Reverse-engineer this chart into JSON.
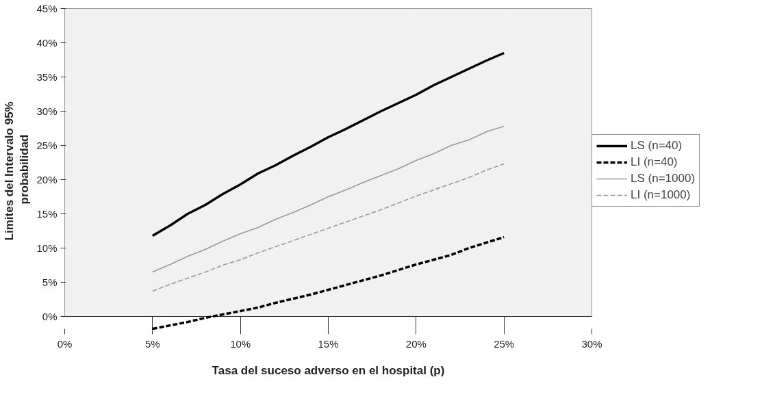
{
  "chart_data": {
    "type": "line",
    "xlabel": "Tasa del suceso adverso en el hospital (p)",
    "ylabel": "Limites del Intervalo  95%\nprobabilidad",
    "x": [
      5,
      6,
      7,
      8,
      9,
      10,
      11,
      12,
      13,
      14,
      15,
      16,
      17,
      18,
      19,
      20,
      21,
      22,
      23,
      24,
      25
    ],
    "series": [
      {
        "name": "LS (n=40)",
        "color": "#000000",
        "line_style": "solid",
        "values": [
          11.8,
          13.3,
          15.0,
          16.3,
          17.9,
          19.3,
          20.9,
          22.1,
          23.5,
          24.8,
          26.2,
          27.4,
          28.7,
          30.0,
          31.2,
          32.4,
          33.8,
          35.0,
          36.2,
          37.4,
          38.5
        ]
      },
      {
        "name": "LI (n=40)",
        "color": "#000000",
        "line_style": "dashed",
        "values": [
          -1.8,
          -1.3,
          -0.8,
          -0.2,
          0.3,
          0.8,
          1.3,
          2.0,
          2.6,
          3.2,
          3.9,
          4.6,
          5.3,
          6.0,
          6.8,
          7.6,
          8.3,
          9.0,
          10.0,
          10.8,
          11.6
        ]
      },
      {
        "name": "LS (n=1000)",
        "color": "#999999",
        "line_style": "solid",
        "values": [
          6.5,
          7.6,
          8.8,
          9.8,
          11.0,
          12.1,
          13.0,
          14.2,
          15.2,
          16.3,
          17.5,
          18.5,
          19.6,
          20.6,
          21.6,
          22.8,
          23.8,
          25.0,
          25.8,
          27.0,
          27.8
        ]
      },
      {
        "name": "LI (n=1000)",
        "color": "#999999",
        "line_style": "dashed",
        "values": [
          3.7,
          4.7,
          5.6,
          6.5,
          7.5,
          8.3,
          9.3,
          10.2,
          11.1,
          12.0,
          12.9,
          13.8,
          14.7,
          15.6,
          16.6,
          17.6,
          18.5,
          19.4,
          20.3,
          21.4,
          22.3
        ]
      }
    ],
    "xlim": [
      0,
      30
    ],
    "xticks": [
      {
        "value": 0,
        "label": "0%"
      },
      {
        "value": 5,
        "label": "5%"
      },
      {
        "value": 10,
        "label": "10%"
      },
      {
        "value": 15,
        "label": "15%"
      },
      {
        "value": 20,
        "label": "20%"
      },
      {
        "value": 25,
        "label": "25%"
      },
      {
        "value": 30,
        "label": "30%"
      }
    ],
    "ylim": [
      -2,
      45
    ],
    "yticks": [
      {
        "value": 0,
        "label": "0%"
      },
      {
        "value": 5,
        "label": "5%"
      },
      {
        "value": 10,
        "label": "10%"
      },
      {
        "value": 15,
        "label": "15%"
      },
      {
        "value": 20,
        "label": "20%"
      },
      {
        "value": 25,
        "label": "25%"
      },
      {
        "value": 30,
        "label": "30%"
      },
      {
        "value": 35,
        "label": "35%"
      },
      {
        "value": 40,
        "label": "40%"
      },
      {
        "value": 45,
        "label": "45%"
      }
    ],
    "grid": true,
    "legend": "right",
    "marker": "none"
  }
}
